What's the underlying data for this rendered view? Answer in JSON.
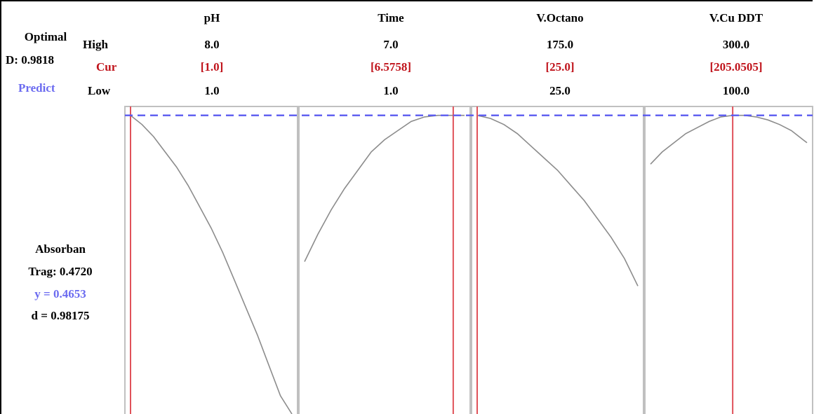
{
  "optimizer": {
    "optimal_label": "Optimal",
    "d_value": "D: 0.9818",
    "predict_label": "Predict",
    "row_high": "High",
    "row_cur": "Cur",
    "row_low": "Low"
  },
  "factors": [
    {
      "name": "pH",
      "high": "8.0",
      "cur": "[1.0]",
      "low": "1.0"
    },
    {
      "name": "Time",
      "high": "7.0",
      "cur": "[6.5758]",
      "low": "1.0"
    },
    {
      "name": "V.Octano",
      "high": "175.0",
      "cur": "[25.0]",
      "low": "25.0"
    },
    {
      "name": "V.Cu DDT",
      "high": "300.0",
      "cur": "[205.0505]",
      "low": "100.0"
    }
  ],
  "response": {
    "name": "Absorban",
    "target": "Trag: 0.4720",
    "predicted": "y = 0.4653",
    "desirability": "d = 0.98175"
  },
  "colors": {
    "current_line": "#e0525a",
    "predict_line": "#5a5af0",
    "curve": "#8c8c8c",
    "panel_border": "#c0c0c0",
    "cur_text": "#c0141c",
    "predict_text": "#6b6bf0"
  },
  "chart_data": {
    "type": "line",
    "ylim": [
      0,
      1
    ],
    "y_reference": 0.98,
    "panels": [
      {
        "factor": "pH",
        "xlim": [
          1.0,
          8.0
        ],
        "current": 1.0,
        "x": [
          1.0,
          1.5,
          2.0,
          2.5,
          3.0,
          3.5,
          4.0,
          4.5,
          5.0,
          5.5,
          6.0,
          6.5,
          7.0,
          7.5,
          8.0
        ],
        "y": [
          0.98,
          0.95,
          0.91,
          0.86,
          0.81,
          0.75,
          0.68,
          0.61,
          0.53,
          0.44,
          0.35,
          0.26,
          0.16,
          0.06,
          0.0
        ]
      },
      {
        "factor": "Time",
        "xlim": [
          1.0,
          7.0
        ],
        "current": 6.5758,
        "x": [
          1.0,
          1.5,
          2.0,
          2.5,
          3.0,
          3.5,
          4.0,
          4.5,
          5.0,
          5.5,
          6.0,
          6.5,
          7.0
        ],
        "y": [
          0.5,
          0.59,
          0.67,
          0.74,
          0.8,
          0.86,
          0.9,
          0.93,
          0.96,
          0.975,
          0.98,
          0.98,
          0.98
        ]
      },
      {
        "factor": "V.Octano",
        "xlim": [
          25.0,
          175.0
        ],
        "current": 25.0,
        "x": [
          25,
          37.5,
          50,
          62.5,
          75,
          87.5,
          100,
          112.5,
          125,
          137.5,
          150,
          162.5,
          175
        ],
        "y": [
          0.98,
          0.97,
          0.95,
          0.92,
          0.88,
          0.84,
          0.8,
          0.75,
          0.7,
          0.64,
          0.58,
          0.51,
          0.42
        ]
      },
      {
        "factor": "V.Cu DDT",
        "xlim": [
          100.0,
          300.0
        ],
        "current": 205.0505,
        "x": [
          100,
          115,
          130,
          145,
          160,
          175,
          190,
          205,
          220,
          235,
          250,
          265,
          280,
          295,
          300
        ],
        "y": [
          0.82,
          0.86,
          0.89,
          0.92,
          0.94,
          0.96,
          0.975,
          0.98,
          0.98,
          0.975,
          0.965,
          0.95,
          0.93,
          0.9,
          0.89
        ]
      }
    ]
  }
}
